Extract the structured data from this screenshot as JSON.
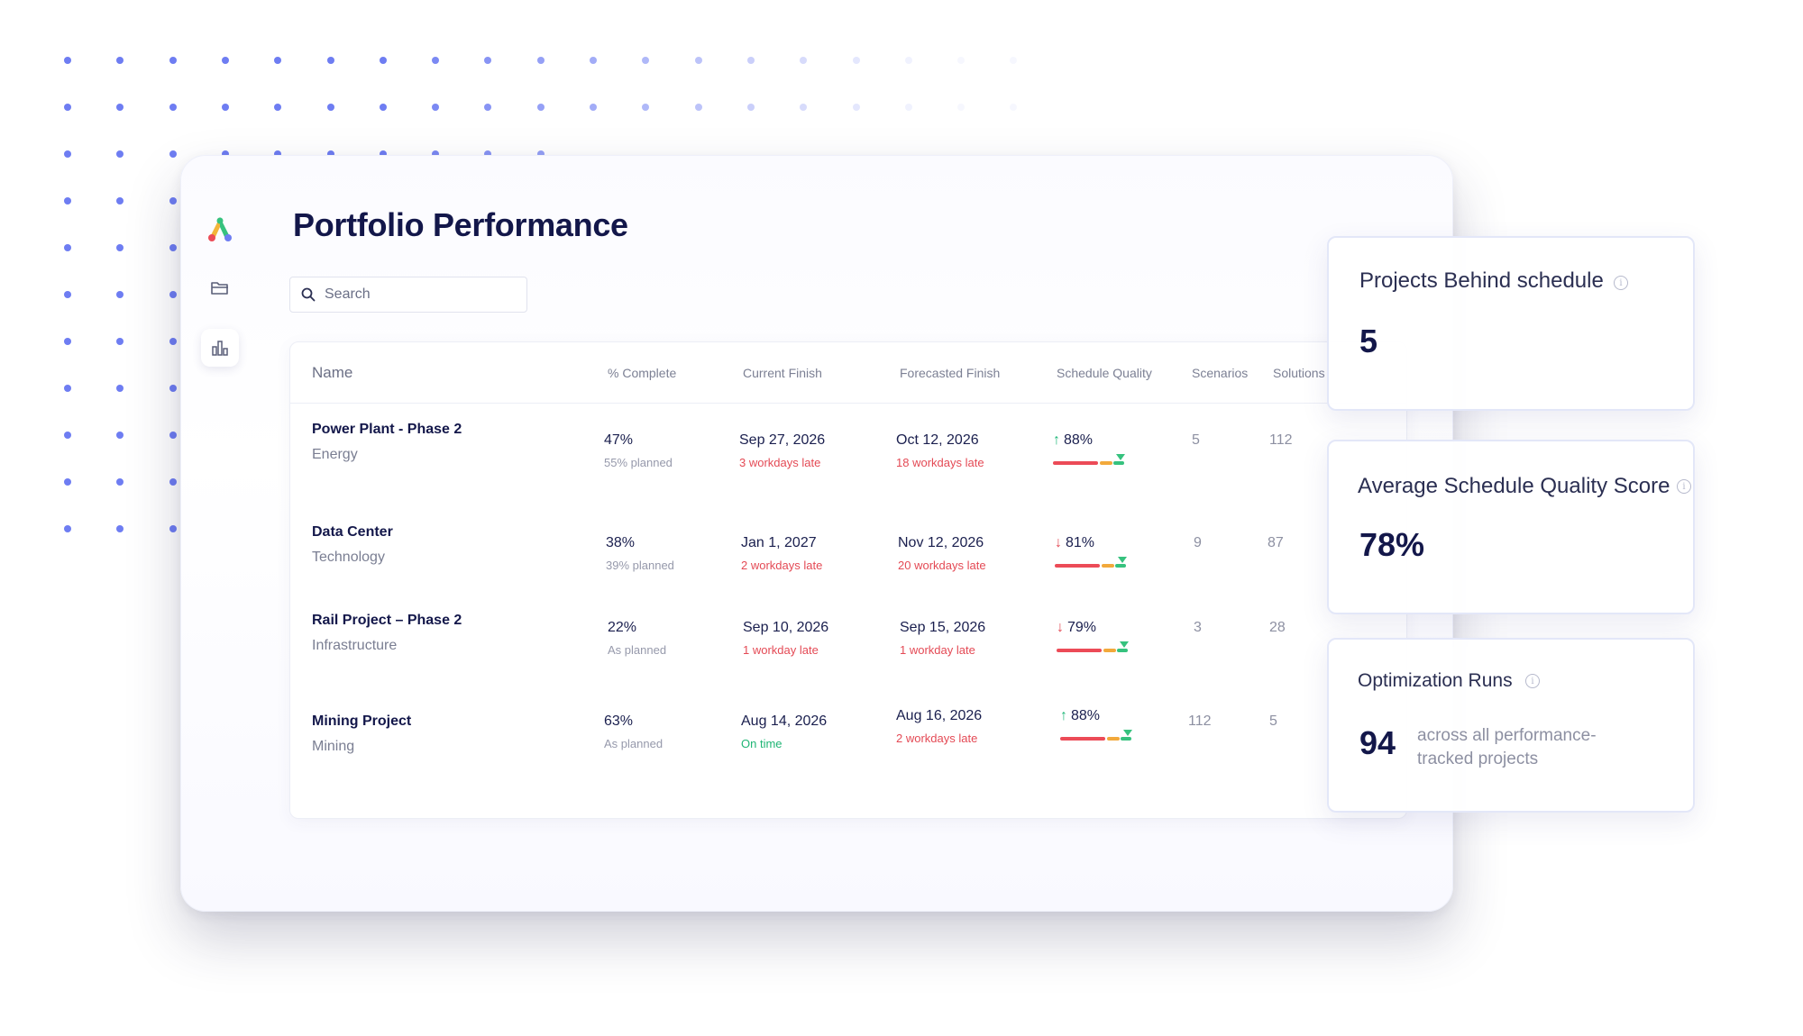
{
  "page": {
    "title": "Portfolio Performance",
    "search_placeholder": "Search"
  },
  "sidebar": {
    "items": [
      {
        "icon": "app-logo"
      },
      {
        "icon": "folder-icon"
      },
      {
        "icon": "bar-chart-icon",
        "active": true
      }
    ]
  },
  "table": {
    "headers": {
      "name": "Name",
      "complete": "% Complete",
      "current_finish": "Current Finish",
      "forecasted_finish": "Forecasted Finish",
      "schedule_quality": "Schedule Quality",
      "scenarios": "Scenarios",
      "solutions": "Solutions"
    },
    "rows": [
      {
        "name": "Power Plant - Phase 2",
        "category": "Energy",
        "complete": "47%",
        "complete_sub": "55% planned",
        "current_finish": "Sep 27, 2026",
        "current_finish_sub": "3 workdays late",
        "forecasted_finish": "Oct 12, 2026",
        "forecasted_finish_sub": "18 workdays late",
        "quality_arrow": "↑",
        "quality": "88%",
        "scenarios": "5",
        "solutions": "112"
      },
      {
        "name": "Data Center",
        "category": "Technology",
        "complete": "38%",
        "complete_sub": "39% planned",
        "current_finish": "Jan 1, 2027",
        "current_finish_sub": "2 workdays late",
        "forecasted_finish": "Nov 12, 2026",
        "forecasted_finish_sub": "20 workdays late",
        "quality_arrow": "↓",
        "quality": "81%",
        "scenarios": "9",
        "solutions": "87"
      },
      {
        "name": "Rail Project – Phase 2",
        "category": "Infrastructure",
        "complete": "22%",
        "complete_sub": "As planned",
        "current_finish": "Sep 10, 2026",
        "current_finish_sub": "1 workday late",
        "forecasted_finish": "Sep 15, 2026",
        "forecasted_finish_sub": "1 workday late",
        "quality_arrow": "↓",
        "quality": "79%",
        "scenarios": "3",
        "solutions": "28"
      },
      {
        "name": "Mining Project",
        "category": "Mining",
        "complete": "63%",
        "complete_sub": "As planned",
        "current_finish": "Aug 14, 2026",
        "current_finish_sub": "On time",
        "forecasted_finish": "Aug 16, 2026",
        "forecasted_finish_sub": "2 workdays late",
        "quality_arrow": "↑",
        "quality": "88%",
        "scenarios": "112",
        "solutions": "5"
      }
    ]
  },
  "stats": {
    "behind": {
      "label": "Projects Behind schedule",
      "value": "5"
    },
    "quality": {
      "label": "Average Schedule Quality Score",
      "value": "78%"
    },
    "runs": {
      "label": "Optimization Runs",
      "value": "94",
      "desc": "across all performance-tracked projects"
    }
  },
  "colors": {
    "accent": "#6e7df2",
    "late": "#e44a55",
    "on_time": "#1fb574",
    "title": "#13174a"
  }
}
